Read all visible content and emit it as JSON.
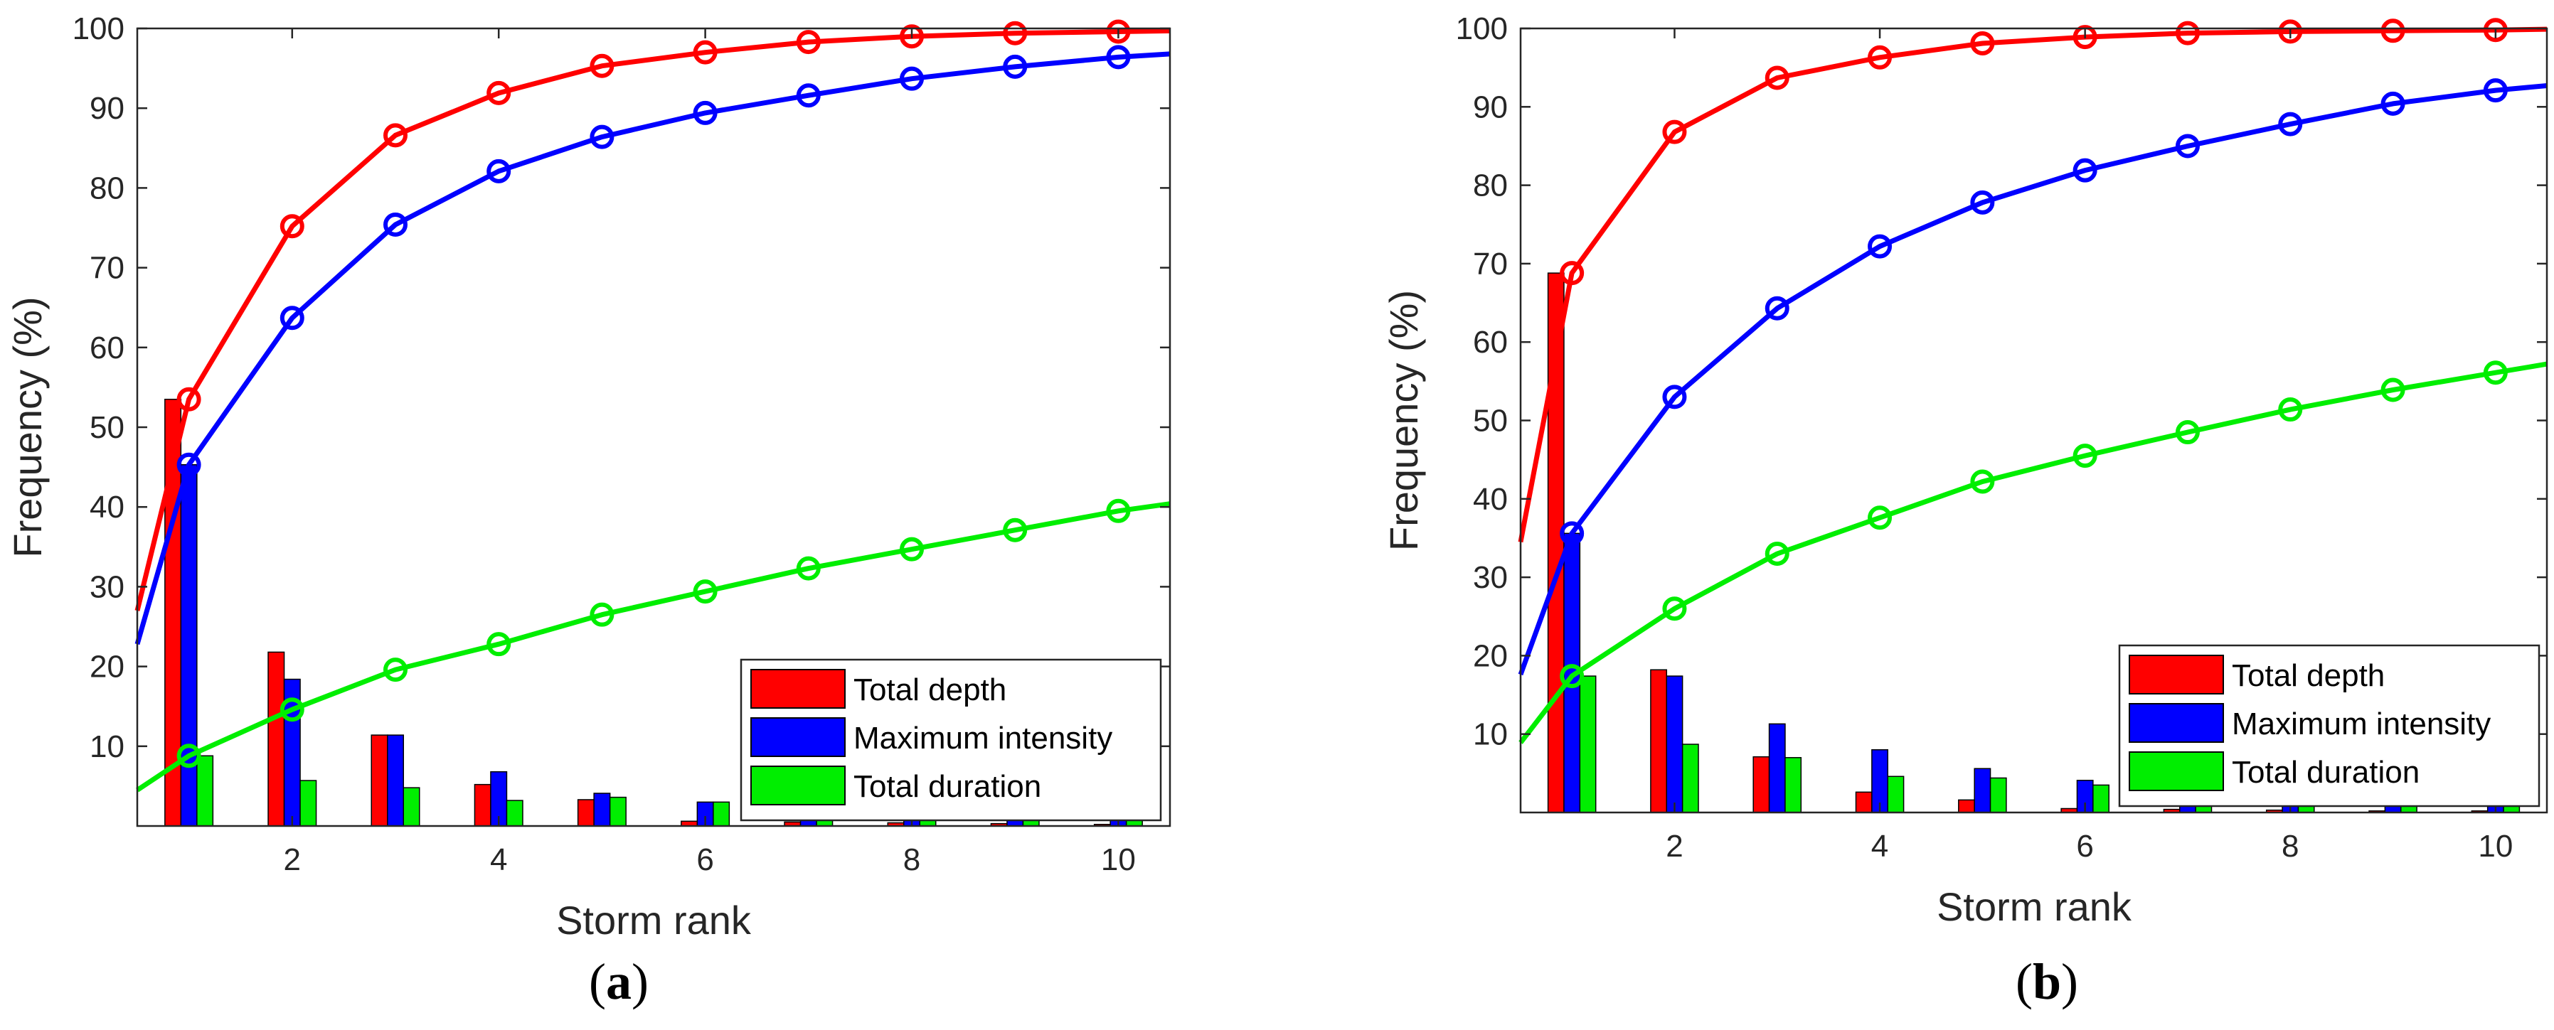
{
  "chart_data": [
    {
      "panel": "a",
      "type": "bar+line",
      "xlabel": "Storm rank",
      "ylabel": "Frequency (%)",
      "xlim": [
        0.5,
        10.5
      ],
      "ylim": [
        0,
        100
      ],
      "xticks": [
        "2",
        "4",
        "6",
        "8",
        "10"
      ],
      "yticks": [
        "10",
        "20",
        "30",
        "40",
        "50",
        "60",
        "70",
        "80",
        "90",
        "100"
      ],
      "categories": [
        1,
        2,
        3,
        4,
        5,
        6,
        7,
        8,
        9,
        10
      ],
      "bars": [
        {
          "name": "Total depth",
          "color": "#ff0000",
          "values": [
            53.5,
            21.8,
            11.4,
            5.2,
            3.3,
            0.6,
            0.5,
            0.4,
            0.3,
            0.2
          ]
        },
        {
          "name": "Maximum intensity",
          "color": "#0000ff",
          "values": [
            45.3,
            18.4,
            11.4,
            6.8,
            4.1,
            3.0,
            2.3,
            1.8,
            1.3,
            1.0
          ]
        },
        {
          "name": "Total duration",
          "color": "#00ee00",
          "values": [
            8.8,
            5.7,
            4.8,
            3.2,
            3.6,
            3.0,
            2.8,
            2.4,
            2.1,
            2.0
          ]
        }
      ],
      "lines": [
        {
          "name": "Total depth cumulative",
          "color": "#ff0000",
          "start": [
            0.5,
            27.0
          ],
          "x": [
            1,
            2,
            3,
            4,
            5,
            6,
            7,
            8,
            9,
            10
          ],
          "y": [
            53.5,
            75.2,
            86.6,
            91.9,
            95.3,
            97.0,
            98.3,
            99.0,
            99.4,
            99.6
          ],
          "end": [
            10.5,
            99.7
          ]
        },
        {
          "name": "Maximum intensity cumulative",
          "color": "#0000ff",
          "start": [
            0.5,
            22.8
          ],
          "x": [
            1,
            2,
            3,
            4,
            5,
            6,
            7,
            8,
            9,
            10
          ],
          "y": [
            45.3,
            63.7,
            75.4,
            82.1,
            86.4,
            89.4,
            91.6,
            93.7,
            95.2,
            96.4
          ],
          "end": [
            10.5,
            96.8
          ]
        },
        {
          "name": "Total duration cumulative",
          "color": "#00ee00",
          "start": [
            0.5,
            4.5
          ],
          "x": [
            1,
            2,
            3,
            4,
            5,
            6,
            7,
            8,
            9,
            10
          ],
          "y": [
            8.8,
            14.6,
            19.6,
            22.8,
            26.5,
            29.4,
            32.3,
            34.7,
            37.1,
            39.5
          ],
          "end": [
            10.5,
            40.4
          ]
        }
      ],
      "legend": [
        "Total depth",
        "Maximum intensity",
        "Total duration"
      ],
      "legend_position": "bottom-right",
      "caption_open": "(",
      "caption_letter": "a",
      "caption_close": ")"
    },
    {
      "panel": "b",
      "type": "bar+line",
      "xlabel": "Storm rank",
      "ylabel": "Frequency (%)",
      "xlim": [
        0.5,
        10.5
      ],
      "ylim": [
        0,
        100
      ],
      "xticks": [
        "2",
        "4",
        "6",
        "8",
        "10"
      ],
      "yticks": [
        "10",
        "20",
        "30",
        "40",
        "50",
        "60",
        "70",
        "80",
        "90",
        "100"
      ],
      "categories": [
        1,
        2,
        3,
        4,
        5,
        6,
        7,
        8,
        9,
        10
      ],
      "bars": [
        {
          "name": "Total depth",
          "color": "#ff0000",
          "values": [
            68.8,
            18.2,
            7.1,
            2.6,
            1.6,
            0.5,
            0.4,
            0.3,
            0.2,
            0.2
          ]
        },
        {
          "name": "Maximum intensity",
          "color": "#0000ff",
          "values": [
            35.6,
            17.4,
            11.3,
            8.0,
            5.6,
            4.1,
            3.1,
            2.7,
            2.4,
            1.6
          ]
        },
        {
          "name": "Total duration",
          "color": "#00ee00",
          "values": [
            17.4,
            8.7,
            7.0,
            4.6,
            4.4,
            3.5,
            3.1,
            2.9,
            2.5,
            2.2
          ]
        }
      ],
      "lines": [
        {
          "name": "Total depth cumulative",
          "color": "#ff0000",
          "start": [
            0.5,
            34.5
          ],
          "x": [
            1,
            2,
            3,
            4,
            5,
            6,
            7,
            8,
            9,
            10
          ],
          "y": [
            68.8,
            86.8,
            93.7,
            96.3,
            98.1,
            98.9,
            99.4,
            99.6,
            99.7,
            99.8
          ],
          "end": [
            10.5,
            99.9
          ]
        },
        {
          "name": "Maximum intensity cumulative",
          "color": "#0000ff",
          "start": [
            0.5,
            17.6
          ],
          "x": [
            1,
            2,
            3,
            4,
            5,
            6,
            7,
            8,
            9,
            10
          ],
          "y": [
            35.6,
            53.0,
            64.3,
            72.2,
            77.8,
            81.9,
            85.0,
            87.8,
            90.4,
            92.1
          ],
          "end": [
            10.5,
            92.7
          ]
        },
        {
          "name": "Total duration cumulative",
          "color": "#00ee00",
          "start": [
            0.5,
            8.9
          ],
          "x": [
            1,
            2,
            3,
            4,
            5,
            6,
            7,
            8,
            9,
            10
          ],
          "y": [
            17.4,
            26.0,
            33.0,
            37.6,
            42.2,
            45.5,
            48.5,
            51.4,
            53.9,
            56.1
          ],
          "end": [
            10.5,
            57.2
          ]
        }
      ],
      "legend": [
        "Total depth",
        "Maximum intensity",
        "Total duration"
      ],
      "legend_position": "bottom-right",
      "caption_open": "(",
      "caption_letter": "b",
      "caption_close": ")"
    }
  ]
}
